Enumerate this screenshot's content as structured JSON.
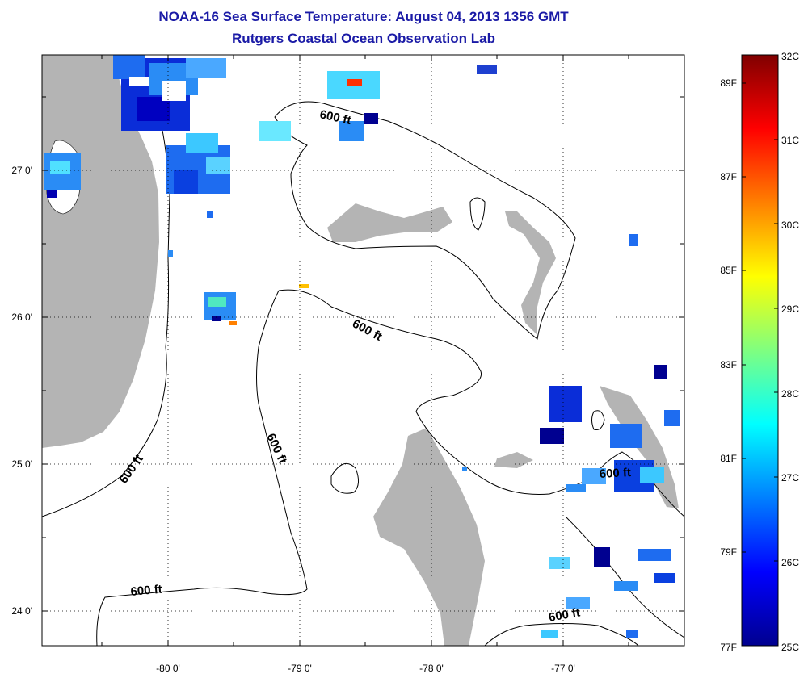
{
  "title": "NOAA-16 Sea Surface Temperature:  August 04, 2013 1356 GMT",
  "subtitle": "Rutgers Coastal Ocean Observation Lab",
  "map": {
    "longitude_labels": [
      "-80 0'",
      "-79 0'",
      "-78 0'",
      "-77 0'"
    ],
    "latitude_labels": [
      "27 0'",
      "26 0'",
      "25 0'",
      "24 0'"
    ],
    "land_color": "#b4b4b4",
    "ocean_color": "#ffffff",
    "grid": "dotted",
    "contour_labels": [
      "600 ft",
      "600 ft",
      "600 ft",
      "600 ft",
      "600 ft",
      "600 ft"
    ]
  },
  "colorbar": {
    "celsius_labels": [
      "32C",
      "31C",
      "30C",
      "29C",
      "28C",
      "27C",
      "26C",
      "25C"
    ],
    "fahrenheit_labels": [
      "89F",
      "87F",
      "85F",
      "83F",
      "81F",
      "79F",
      "77F"
    ],
    "min_c": 25,
    "max_c": 32,
    "colors": [
      "#00008f",
      "#0000ff",
      "#00ffff",
      "#ffff00",
      "#ff0000",
      "#800000"
    ]
  }
}
